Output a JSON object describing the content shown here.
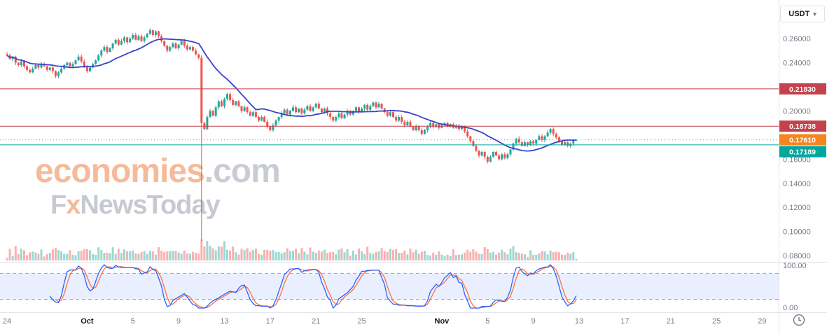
{
  "symbol_selector": {
    "label": "USDT",
    "chevron": "▾"
  },
  "watermark": {
    "brand": "economies",
    "brand_suffix": ".com",
    "sub_prefix": "F",
    "sub_x": "x",
    "sub_rest": "NewsToday"
  },
  "price_axis": {
    "ticks": [
      "0.26000",
      "0.24000",
      "0.20000",
      "0.16000",
      "0.14000",
      "0.12000",
      "0.10000",
      "0.08000"
    ],
    "tick_values": [
      0.26,
      0.24,
      0.2,
      0.16,
      0.14,
      0.12,
      0.1,
      0.08
    ]
  },
  "chart_data": {
    "type": "candlestick",
    "ylim": [
      0.076,
      0.292
    ],
    "grid": "off",
    "x_axis": {
      "ticks": [
        {
          "label": "24",
          "day": 0,
          "major": false
        },
        {
          "label": "Oct",
          "day": 7,
          "major": true
        },
        {
          "label": "5",
          "day": 11,
          "major": false
        },
        {
          "label": "9",
          "day": 15,
          "major": false
        },
        {
          "label": "13",
          "day": 19,
          "major": false
        },
        {
          "label": "17",
          "day": 23,
          "major": false
        },
        {
          "label": "21",
          "day": 27,
          "major": false
        },
        {
          "label": "25",
          "day": 31,
          "major": false
        },
        {
          "label": "Nov",
          "day": 38,
          "major": true
        },
        {
          "label": "5",
          "day": 42,
          "major": false
        },
        {
          "label": "9",
          "day": 46,
          "major": false
        },
        {
          "label": "13",
          "day": 50,
          "major": false
        },
        {
          "label": "17",
          "day": 54,
          "major": false
        },
        {
          "label": "21",
          "day": 58,
          "major": false
        },
        {
          "label": "25",
          "day": 62,
          "major": false
        },
        {
          "label": "29",
          "day": 66,
          "major": false
        }
      ]
    },
    "levels": [
      {
        "value": 0.2183,
        "label": "0.21830",
        "line_color": "#c4424d",
        "line_style": "solid",
        "chip_bg": "#c4424d"
      },
      {
        "value": 0.18738,
        "label": "0.18738",
        "line_color": "#c4424d",
        "line_style": "solid",
        "chip_bg": "#c4424d"
      },
      {
        "value": 0.1761,
        "label": "0.17610",
        "line_color": "#9598a1",
        "line_style": "dotted",
        "chip_bg": "#f6851f"
      },
      {
        "value": 0.17189,
        "label": "0.17189",
        "line_color": "#00a79d",
        "line_style": "solid",
        "chip_bg": "#00a79d"
      }
    ],
    "candles": {
      "per_day": 4,
      "first_open": 0.247,
      "up_color": "#26a69a",
      "down_color": "#ef5350",
      "special": {
        "68": [
          0.244,
          0.246,
          0.092,
          0.19
        ]
      },
      "closes": [
        0.246,
        0.243,
        0.245,
        0.24,
        0.238,
        0.241,
        0.237,
        0.234,
        0.232,
        0.235,
        0.238,
        0.236,
        0.239,
        0.237,
        0.234,
        0.236,
        0.233,
        0.229,
        0.232,
        0.235,
        0.238,
        0.24,
        0.237,
        0.239,
        0.242,
        0.245,
        0.241,
        0.237,
        0.233,
        0.236,
        0.239,
        0.242,
        0.246,
        0.25,
        0.253,
        0.249,
        0.252,
        0.256,
        0.259,
        0.255,
        0.258,
        0.261,
        0.257,
        0.26,
        0.263,
        0.259,
        0.262,
        0.258,
        0.261,
        0.264,
        0.267,
        0.263,
        0.266,
        0.262,
        0.258,
        0.254,
        0.25,
        0.253,
        0.256,
        0.252,
        0.255,
        0.258,
        0.254,
        0.251,
        0.253,
        0.25,
        0.247,
        0.244,
        0.19,
        0.185,
        0.195,
        0.2,
        0.196,
        0.203,
        0.208,
        0.204,
        0.21,
        0.214,
        0.209,
        0.205,
        0.208,
        0.204,
        0.2,
        0.203,
        0.199,
        0.196,
        0.199,
        0.195,
        0.192,
        0.195,
        0.191,
        0.187,
        0.184,
        0.188,
        0.192,
        0.195,
        0.198,
        0.201,
        0.197,
        0.2,
        0.203,
        0.199,
        0.202,
        0.198,
        0.201,
        0.204,
        0.2,
        0.203,
        0.206,
        0.202,
        0.199,
        0.202,
        0.198,
        0.195,
        0.192,
        0.195,
        0.198,
        0.194,
        0.197,
        0.2,
        0.197,
        0.2,
        0.203,
        0.199,
        0.202,
        0.205,
        0.201,
        0.204,
        0.207,
        0.203,
        0.206,
        0.202,
        0.199,
        0.196,
        0.199,
        0.195,
        0.192,
        0.195,
        0.191,
        0.188,
        0.191,
        0.187,
        0.184,
        0.187,
        0.184,
        0.181,
        0.184,
        0.187,
        0.19,
        0.187,
        0.189,
        0.186,
        0.188,
        0.19,
        0.187,
        0.189,
        0.186,
        0.188,
        0.185,
        0.187,
        0.183,
        0.179,
        0.175,
        0.171,
        0.167,
        0.163,
        0.166,
        0.162,
        0.158,
        0.162,
        0.166,
        0.163,
        0.16,
        0.164,
        0.161,
        0.164,
        0.168,
        0.173,
        0.177,
        0.174,
        0.171,
        0.174,
        0.172,
        0.175,
        0.173,
        0.176,
        0.179,
        0.176,
        0.179,
        0.182,
        0.185,
        0.181,
        0.178,
        0.175,
        0.172,
        0.174,
        0.171,
        0.173,
        0.176,
        0.176
      ]
    },
    "ma": {
      "period": 20,
      "color": "#3644c9"
    },
    "stochastic": {
      "k_period": 14,
      "k_smooth": 3,
      "d_period": 3,
      "k_color": "#2962ff",
      "d_color": "#ff7043",
      "upper_band": 80,
      "lower_band": 20,
      "band_color": "#2962ff",
      "labels": {
        "top": "100.00",
        "bottom": "0.00"
      }
    }
  }
}
